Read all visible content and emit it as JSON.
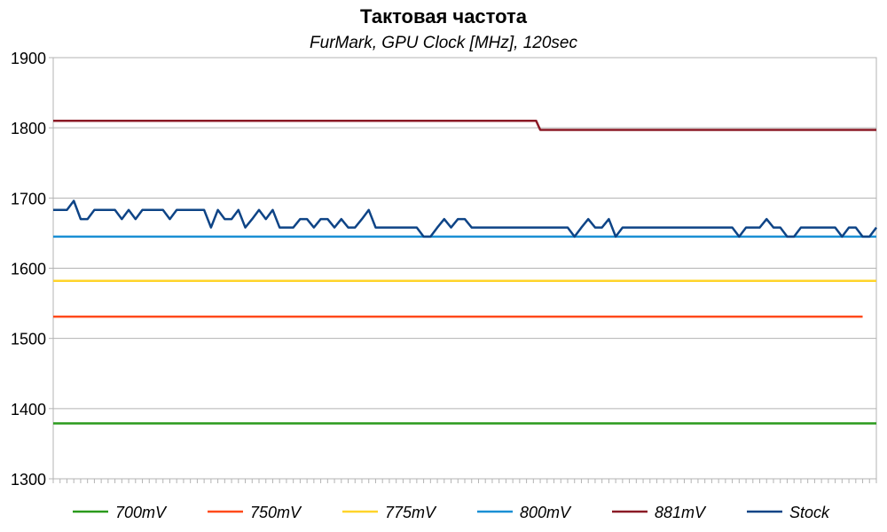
{
  "chart_data": {
    "type": "line",
    "title": "Тактовая частота",
    "subtitle": "FurMark, GPU Clock [MHz], 120sec",
    "ylim": [
      1300,
      1900
    ],
    "yticks": [
      1300,
      1400,
      1500,
      1600,
      1700,
      1800,
      1900
    ],
    "x_count": 120,
    "grid": "horizontal",
    "legend_position": "bottom",
    "series": [
      {
        "name": "700mV",
        "color": "#2a9a1c",
        "values": [
          1379
        ]
      },
      {
        "name": "750mV",
        "color": "#ff4a1b",
        "values": [
          1531
        ],
        "x_end": 118
      },
      {
        "name": "775mV",
        "color": "#ffd42a",
        "values": [
          1582
        ]
      },
      {
        "name": "800mV",
        "color": "#1a8fd4",
        "values": [
          1645
        ]
      },
      {
        "name": "881mV",
        "color": "#8b1a26",
        "values": [
          1810
        ],
        "step": {
          "x": 71,
          "value": 1797
        }
      },
      {
        "name": "Stock",
        "color": "#0e4486",
        "values": [
          1683,
          1683,
          1683,
          1696,
          1670,
          1670,
          1683,
          1683,
          1683,
          1683,
          1670,
          1683,
          1670,
          1683,
          1683,
          1683,
          1683,
          1670,
          1683,
          1683,
          1683,
          1683,
          1683,
          1658,
          1683,
          1670,
          1670,
          1683,
          1658,
          1670,
          1683,
          1670,
          1683,
          1658,
          1658,
          1658,
          1670,
          1670,
          1658,
          1670,
          1670,
          1658,
          1670,
          1658,
          1658,
          1670,
          1683,
          1658,
          1658,
          1658,
          1658,
          1658,
          1658,
          1658,
          1645,
          1645,
          1658,
          1670,
          1658,
          1670,
          1670,
          1658,
          1658,
          1658,
          1658,
          1658,
          1658,
          1658,
          1658,
          1658,
          1658,
          1658,
          1658,
          1658,
          1658,
          1658,
          1645,
          1658,
          1670,
          1658,
          1658,
          1670,
          1645,
          1658,
          1658,
          1658,
          1658,
          1658,
          1658,
          1658,
          1658,
          1658,
          1658,
          1658,
          1658,
          1658,
          1658,
          1658,
          1658,
          1658,
          1645,
          1658,
          1658,
          1658,
          1670,
          1658,
          1658,
          1645,
          1645,
          1658,
          1658,
          1658,
          1658,
          1658,
          1658,
          1645,
          1658,
          1658,
          1645,
          1645,
          1658
        ]
      }
    ]
  }
}
